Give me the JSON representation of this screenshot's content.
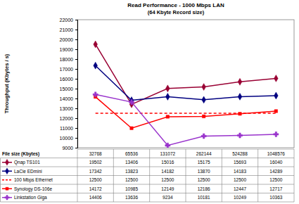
{
  "chart_data": {
    "type": "line",
    "title": "Read Performance - 1000 Mbps LAN",
    "subtitle": "(64 Kbyte Record size)",
    "x_label": "File size (Kbytes)",
    "y_label": "Throughput (Kbytes / s)",
    "categories": [
      32768,
      65536,
      131072,
      262144,
      524288,
      1048576
    ],
    "ylim": [
      9000,
      22000
    ],
    "yticks": [
      9000,
      10000,
      11000,
      12000,
      13000,
      14000,
      15000,
      16000,
      17000,
      18000,
      19000,
      20000,
      21000,
      22000
    ],
    "grid": false,
    "legend": "bottom",
    "series": [
      {
        "name": "Qnap TS101",
        "color": "#990033",
        "marker": "diamond",
        "line_style": "solid",
        "values": [
          19502,
          13406,
          15016,
          15175,
          15693,
          16040
        ]
      },
      {
        "name": "LaCie EDmini",
        "color": "#000080",
        "marker": "diamond",
        "line_style": "solid",
        "values": [
          17342,
          13823,
          14182,
          13870,
          14183,
          14289
        ]
      },
      {
        "name": "100 Mbps Ethernet",
        "color": "#ff0000",
        "marker": "none",
        "line_style": "dashed",
        "values": [
          12500,
          12500,
          12500,
          12500,
          12500,
          12500
        ]
      },
      {
        "name": "Synology DS-106e",
        "color": "#ff0000",
        "marker": "square",
        "line_style": "solid",
        "values": [
          14172,
          10985,
          12149,
          12186,
          12447,
          12717
        ]
      },
      {
        "name": "Linkstation Giga",
        "color": "#9933cc",
        "marker": "cross",
        "line_style": "solid",
        "values": [
          14406,
          13636,
          9234,
          10181,
          10249,
          10363
        ]
      }
    ]
  }
}
